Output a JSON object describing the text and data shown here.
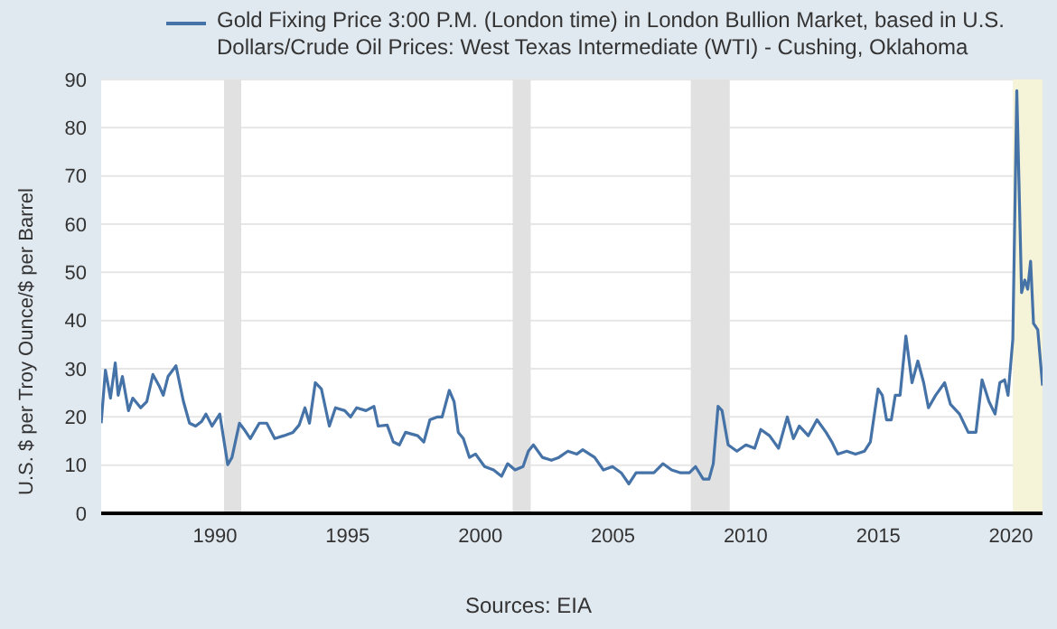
{
  "chart_data": {
    "type": "line",
    "ylabel": "U.S. $ per Troy Ounce/$ per Barrel",
    "annotations": [
      "Sources: EIA"
    ],
    "x": [
      1985.71,
      1985.87,
      1986.06,
      1986.24,
      1986.35,
      1986.51,
      1986.74,
      1986.9,
      1987.2,
      1987.43,
      1987.66,
      1987.89,
      1988.05,
      1988.23,
      1988.53,
      1988.81,
      1989.04,
      1989.27,
      1989.5,
      1989.66,
      1989.89,
      1990.18,
      1990.48,
      1990.64,
      1990.92,
      1991.1,
      1991.33,
      1991.67,
      1991.95,
      1992.25,
      1992.59,
      1992.94,
      1993.17,
      1993.39,
      1993.56,
      1993.78,
      1994.01,
      1994.31,
      1994.54,
      1994.89,
      1995.11,
      1995.34,
      1995.69,
      1995.99,
      1996.15,
      1996.49,
      1996.72,
      1996.95,
      1997.18,
      1997.64,
      1997.87,
      1998.1,
      1998.39,
      1998.56,
      1998.83,
      1999.01,
      1999.17,
      1999.36,
      1999.59,
      1999.82,
      2000.16,
      2000.5,
      2000.8,
      2001.03,
      2001.31,
      2001.61,
      2001.81,
      2002,
      2002.34,
      2002.68,
      2002.96,
      2003.3,
      2003.64,
      2003.86,
      2004.31,
      2004.64,
      2004.98,
      2005.31,
      2005.6,
      2005.87,
      2006.21,
      2006.54,
      2006.88,
      2007.21,
      2007.55,
      2007.88,
      2008.11,
      2008.4,
      2008.62,
      2008.78,
      2008.96,
      2009.11,
      2009.34,
      2009.67,
      2010.01,
      2010.34,
      2010.57,
      2010.9,
      2011.24,
      2011.57,
      2011.8,
      2012.02,
      2012.36,
      2012.69,
      2013.03,
      2013.25,
      2013.47,
      2013.81,
      2014.14,
      2014.48,
      2014.7,
      2014.99,
      2015.15,
      2015.31,
      2015.49,
      2015.64,
      2015.82,
      2016.04,
      2016.27,
      2016.49,
      2016.71,
      2016.89,
      2017.16,
      2017.5,
      2017.72,
      2018.06,
      2018.39,
      2018.68,
      2018.91,
      2019.17,
      2019.4,
      2019.58,
      2019.76,
      2019.89,
      2020.07,
      2020.22,
      2020.4,
      2020.52,
      2020.63,
      2020.74,
      2020.85,
      2021.01,
      2021.19
    ],
    "series": [
      {
        "name": "Gold Fixing Price 3:00 P.M. (London time) in London Bullion Market, based in U.S. Dollars/Crude Oil Prices: West Texas Intermediate (WTI) - Cushing, Oklahoma",
        "color": "#4572a7",
        "values": [
          18.7,
          29.7,
          23.9,
          31.2,
          24.5,
          28.4,
          21.3,
          23.9,
          21.9,
          23.2,
          28.8,
          26.5,
          24.5,
          28.4,
          30.6,
          23.2,
          18.7,
          18.1,
          19.1,
          20.6,
          18.1,
          20.6,
          10.1,
          11.6,
          18.7,
          17.4,
          15.5,
          18.7,
          18.7,
          15.5,
          16.1,
          16.8,
          18.3,
          21.9,
          18.7,
          27.1,
          25.8,
          18.1,
          21.9,
          21.3,
          20,
          21.9,
          21.3,
          22.2,
          18.1,
          18.3,
          14.8,
          14.2,
          16.8,
          16.1,
          14.8,
          19.4,
          20,
          20,
          25.5,
          23.2,
          16.8,
          15.5,
          11.6,
          12.3,
          9.7,
          9,
          7.7,
          10.3,
          9,
          9.7,
          12.9,
          14.2,
          11.6,
          11,
          11.6,
          12.9,
          12.3,
          13.2,
          11.6,
          9,
          9.7,
          8.4,
          6.1,
          8.4,
          8.4,
          8.4,
          10.3,
          9,
          8.4,
          8.4,
          9.7,
          7.1,
          7.1,
          10.3,
          22.2,
          21.3,
          14.2,
          12.9,
          14.2,
          13.5,
          17.4,
          16.1,
          13.5,
          20,
          15.5,
          18.1,
          16.1,
          19.4,
          16.8,
          14.8,
          12.3,
          12.9,
          12.3,
          12.9,
          14.8,
          25.8,
          24.5,
          19.4,
          19.4,
          24.5,
          24.5,
          36.8,
          27.1,
          31.6,
          27.1,
          21.9,
          24.5,
          27.1,
          22.6,
          20.6,
          16.8,
          16.8,
          27.7,
          23.2,
          20.6,
          27.1,
          27.7,
          24.5,
          36.1,
          87.7,
          45.8,
          48.4,
          46.5,
          52.3,
          39.4,
          38.1,
          26.5
        ]
      }
    ],
    "xlim": [
      1985.71,
      2021.19
    ],
    "xticks": [
      1990,
      1995,
      2000,
      2005,
      2010,
      2015,
      2020
    ],
    "ylim": [
      0,
      90
    ],
    "yticks": [
      0,
      10,
      20,
      30,
      40,
      50,
      60,
      70,
      80,
      90
    ],
    "bands": [
      {
        "axis": "x",
        "from": 1990.34,
        "to": 1990.99,
        "color": "#e1e1e1"
      },
      {
        "axis": "x",
        "from": 2001.22,
        "to": 2001.9,
        "color": "#e1e1e1"
      },
      {
        "axis": "x",
        "from": 2007.93,
        "to": 2009.4,
        "color": "#e1e1e1"
      },
      {
        "axis": "x",
        "from": 2020.07,
        "to": 2021.19,
        "color": "#f5f3d8"
      }
    ],
    "grid": "y",
    "legend": "top",
    "marker": "none",
    "line_style": "solid"
  }
}
